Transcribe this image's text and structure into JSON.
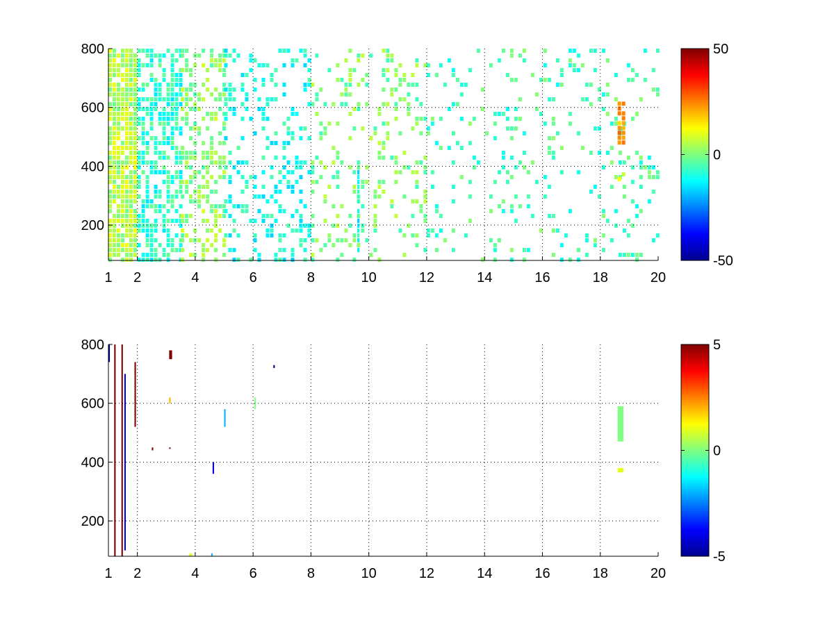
{
  "chart_data": [
    {
      "type": "heatmap",
      "title": "",
      "xlabel": "",
      "ylabel": "",
      "xlim": [
        1,
        20
      ],
      "ylim": [
        80,
        800
      ],
      "xticks": [
        1,
        2,
        4,
        6,
        8,
        10,
        12,
        14,
        16,
        18,
        20
      ],
      "xtick_labels": [
        "1",
        "2",
        "4",
        "6",
        "8",
        "10",
        "12",
        "14",
        "16",
        "18",
        "20"
      ],
      "yticks": [
        200,
        400,
        600,
        800
      ],
      "ytick_labels": [
        "200",
        "400",
        "600",
        "800"
      ],
      "grid": true,
      "colormap": "jet",
      "clim": [
        -50,
        50
      ],
      "colorbar_ticks": [
        -50,
        0,
        50
      ],
      "colorbar_labels": [
        "-50",
        "0",
        "50"
      ],
      "features": [
        {
          "x": [
            1.0,
            2.0
          ],
          "y": [
            80,
            800
          ],
          "value": 5,
          "density": 0.9
        },
        {
          "x": [
            2.0,
            3.5
          ],
          "y": [
            80,
            800
          ],
          "value": -8,
          "density": 0.6
        },
        {
          "x": [
            3.5,
            5.0
          ],
          "y": [
            80,
            800
          ],
          "value": 2,
          "density": 0.45
        },
        {
          "x": [
            5.0,
            8.0
          ],
          "y": [
            80,
            800
          ],
          "value": -10,
          "density": 0.25
        },
        {
          "x": [
            8.0,
            12.0
          ],
          "y": [
            80,
            800
          ],
          "value": 0,
          "density": 0.2
        },
        {
          "x": [
            12.0,
            20.0
          ],
          "y": [
            80,
            800
          ],
          "value": -5,
          "density": 0.12
        },
        {
          "x": [
            9.6,
            9.7
          ],
          "y": [
            110,
            420
          ],
          "value": -12,
          "density": 0.9
        },
        {
          "x": [
            18.6,
            18.8
          ],
          "y": [
            480,
            620
          ],
          "value": 22,
          "density": 0.95
        },
        {
          "x": [
            18.6,
            18.8
          ],
          "y": [
            340,
            380
          ],
          "value": 14,
          "density": 0.9
        }
      ]
    },
    {
      "type": "heatmap",
      "title": "",
      "xlabel": "",
      "ylabel": "",
      "xlim": [
        1,
        20
      ],
      "ylim": [
        80,
        800
      ],
      "xticks": [
        1,
        2,
        4,
        6,
        8,
        10,
        12,
        14,
        16,
        18,
        20
      ],
      "xtick_labels": [
        "1",
        "2",
        "4",
        "6",
        "8",
        "10",
        "12",
        "14",
        "16",
        "18",
        "20"
      ],
      "yticks": [
        200,
        400,
        600,
        800
      ],
      "ytick_labels": [
        "200",
        "400",
        "600",
        "800"
      ],
      "grid": true,
      "colormap": "jet",
      "clim": [
        -5,
        5
      ],
      "colorbar_ticks": [
        -5,
        0,
        5
      ],
      "colorbar_labels": [
        "-5",
        "0",
        "5"
      ],
      "features": [
        {
          "x": [
            1.0,
            1.05
          ],
          "y": [
            740,
            800
          ],
          "value": -5
        },
        {
          "x": [
            1.2,
            1.25
          ],
          "y": [
            80,
            800
          ],
          "value": 5
        },
        {
          "x": [
            1.45,
            1.5
          ],
          "y": [
            80,
            800
          ],
          "value": 5
        },
        {
          "x": [
            1.55,
            1.6
          ],
          "y": [
            100,
            700
          ],
          "value": -4
        },
        {
          "x": [
            1.9,
            1.95
          ],
          "y": [
            520,
            740
          ],
          "value": 5
        },
        {
          "x": [
            2.5,
            2.55
          ],
          "y": [
            440,
            450
          ],
          "value": 5
        },
        {
          "x": [
            3.1,
            3.2
          ],
          "y": [
            750,
            780
          ],
          "value": 5
        },
        {
          "x": [
            3.1,
            3.15
          ],
          "y": [
            600,
            620
          ],
          "value": 2
        },
        {
          "x": [
            3.1,
            3.15
          ],
          "y": [
            445,
            450
          ],
          "value": 5
        },
        {
          "x": [
            3.8,
            3.9
          ],
          "y": [
            80,
            90
          ],
          "value": 1
        },
        {
          "x": [
            4.6,
            4.65
          ],
          "y": [
            360,
            400
          ],
          "value": -4
        },
        {
          "x": [
            4.55,
            4.6
          ],
          "y": [
            80,
            90
          ],
          "value": -2
        },
        {
          "x": [
            5.0,
            5.05
          ],
          "y": [
            520,
            580
          ],
          "value": -2
        },
        {
          "x": [
            6.05,
            6.1
          ],
          "y": [
            580,
            620
          ],
          "value": 0
        },
        {
          "x": [
            6.7,
            6.75
          ],
          "y": [
            720,
            730
          ],
          "value": -5
        },
        {
          "x": [
            18.6,
            18.8
          ],
          "y": [
            470,
            590
          ],
          "value": 0
        },
        {
          "x": [
            18.6,
            18.8
          ],
          "y": [
            365,
            380
          ],
          "value": 1
        }
      ]
    }
  ]
}
